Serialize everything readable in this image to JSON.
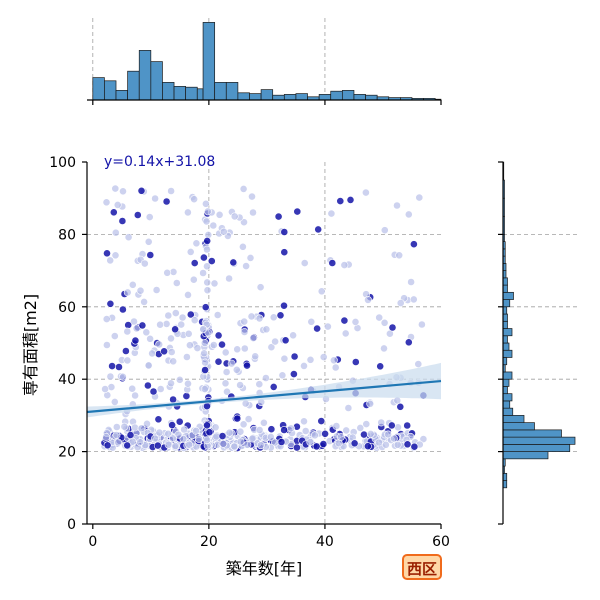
{
  "chart_data": {
    "type": "scatter",
    "title": "",
    "xlabel": "築年数[年]",
    "ylabel": "専有面積[m2]",
    "xlim": [
      -1,
      60
    ],
    "ylim": [
      0,
      100
    ],
    "x_ticks": [
      "0",
      "20",
      "40",
      "60"
    ],
    "y_ticks": [
      "0",
      "20",
      "40",
      "60",
      "80",
      "100"
    ],
    "grid": true,
    "regression": {
      "label": "y=0.14x+31.08",
      "slope": 0.14,
      "intercept": 31.08,
      "color": "#1f77b4",
      "band_color": "#c9dcee"
    },
    "point_colors": {
      "light": "#b8bfe8",
      "dark": "#1414a8"
    },
    "marginal_x_histogram": {
      "bin_edges": [
        0,
        2,
        4,
        6,
        8,
        10,
        12,
        14,
        16,
        18,
        19,
        21,
        23,
        25,
        27,
        29,
        31,
        33,
        35,
        37,
        39,
        41,
        43,
        45,
        47,
        49,
        51,
        53,
        55,
        57,
        59,
        60
      ],
      "counts": [
        0.28,
        0.24,
        0.12,
        0.36,
        0.62,
        0.48,
        0.22,
        0.17,
        0.16,
        0.14,
        0.97,
        0.22,
        0.22,
        0.09,
        0.08,
        0.13,
        0.06,
        0.07,
        0.08,
        0.04,
        0.07,
        0.11,
        0.12,
        0.07,
        0.06,
        0.04,
        0.03,
        0.03,
        0.02,
        0.02,
        0.01
      ]
    },
    "marginal_y_histogram": {
      "bin_edges": [
        10,
        12,
        14,
        16,
        18,
        20,
        22,
        24,
        26,
        28,
        30,
        32,
        34,
        36,
        38,
        40,
        42,
        44,
        46,
        48,
        50,
        52,
        54,
        56,
        58,
        60,
        62,
        64,
        66,
        68,
        70,
        72,
        74,
        76,
        78,
        80,
        85,
        90,
        95,
        100
      ],
      "counts": [
        0.05,
        0.05,
        0.02,
        0.03,
        0.6,
        0.89,
        0.96,
        0.78,
        0.42,
        0.28,
        0.13,
        0.09,
        0.12,
        0.06,
        0.08,
        0.12,
        0.03,
        0.05,
        0.12,
        0.08,
        0.06,
        0.12,
        0.06,
        0.06,
        0.05,
        0.09,
        0.14,
        0.06,
        0.06,
        0.04,
        0.04,
        0.03,
        0.03,
        0.03,
        0.02,
        0.02,
        0.02,
        0.02,
        0.01
      ]
    }
  },
  "badge": {
    "label": "西区"
  }
}
